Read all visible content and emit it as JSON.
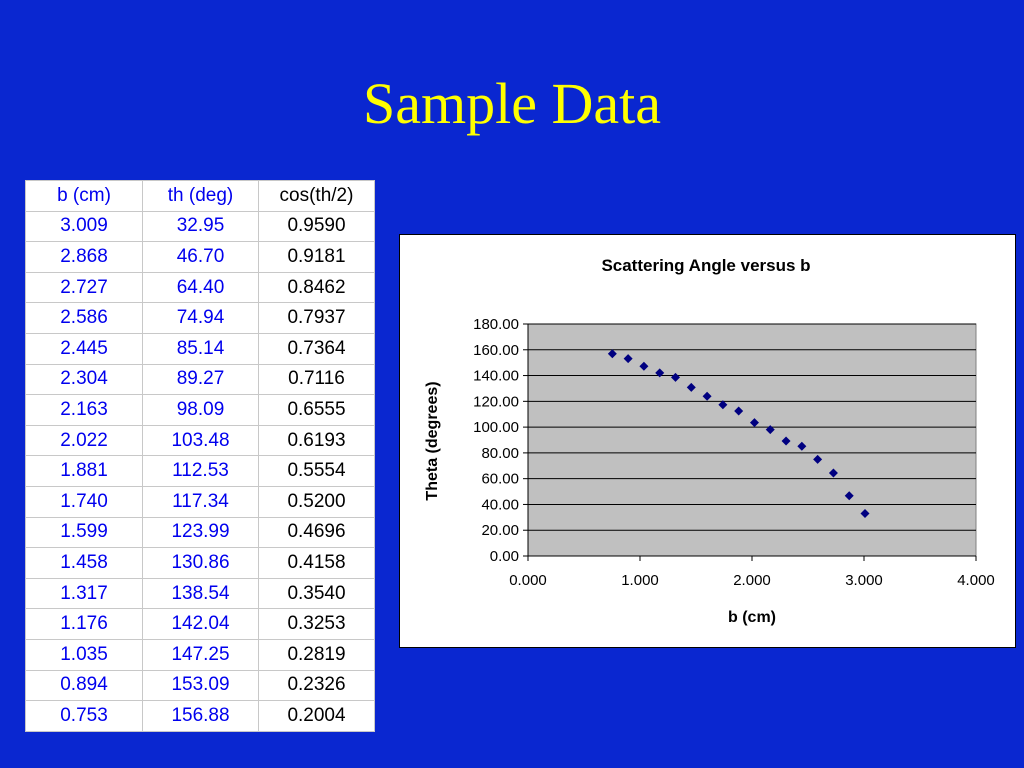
{
  "slide": {
    "title": "Sample Data"
  },
  "table": {
    "headers": [
      "b (cm)",
      "th (deg)",
      "cos(th/2)"
    ],
    "rows": [
      [
        "3.009",
        "32.95",
        "0.9590"
      ],
      [
        "2.868",
        "46.70",
        "0.9181"
      ],
      [
        "2.727",
        "64.40",
        "0.8462"
      ],
      [
        "2.586",
        "74.94",
        "0.7937"
      ],
      [
        "2.445",
        "85.14",
        "0.7364"
      ],
      [
        "2.304",
        "89.27",
        "0.7116"
      ],
      [
        "2.163",
        "98.09",
        "0.6555"
      ],
      [
        "2.022",
        "103.48",
        "0.6193"
      ],
      [
        "1.881",
        "112.53",
        "0.5554"
      ],
      [
        "1.740",
        "117.34",
        "0.5200"
      ],
      [
        "1.599",
        "123.99",
        "0.4696"
      ],
      [
        "1.458",
        "130.86",
        "0.4158"
      ],
      [
        "1.317",
        "138.54",
        "0.3540"
      ],
      [
        "1.176",
        "142.04",
        "0.3253"
      ],
      [
        "1.035",
        "147.25",
        "0.2819"
      ],
      [
        "0.894",
        "153.09",
        "0.2326"
      ],
      [
        "0.753",
        "156.88",
        "0.2004"
      ]
    ]
  },
  "chart_data": {
    "type": "scatter",
    "title": "Scattering Angle versus b",
    "xlabel": "b (cm)",
    "ylabel": "Theta (degrees)",
    "xlim": [
      0,
      4
    ],
    "ylim": [
      0,
      180
    ],
    "xticks": [
      "0.000",
      "1.000",
      "2.000",
      "3.000",
      "4.000"
    ],
    "yticks": [
      "0.00",
      "20.00",
      "40.00",
      "60.00",
      "80.00",
      "100.00",
      "120.00",
      "140.00",
      "160.00",
      "180.00"
    ],
    "grid": true,
    "legend": "none",
    "plot_bg": "#c0c0c0",
    "marker_color": "#000080",
    "x": [
      3.009,
      2.868,
      2.727,
      2.586,
      2.445,
      2.304,
      2.163,
      2.022,
      1.881,
      1.74,
      1.599,
      1.458,
      1.317,
      1.176,
      1.035,
      0.894,
      0.753
    ],
    "y": [
      32.95,
      46.7,
      64.4,
      74.94,
      85.14,
      89.27,
      98.09,
      103.48,
      112.53,
      117.34,
      123.99,
      130.86,
      138.54,
      142.04,
      147.25,
      153.09,
      156.88
    ]
  }
}
